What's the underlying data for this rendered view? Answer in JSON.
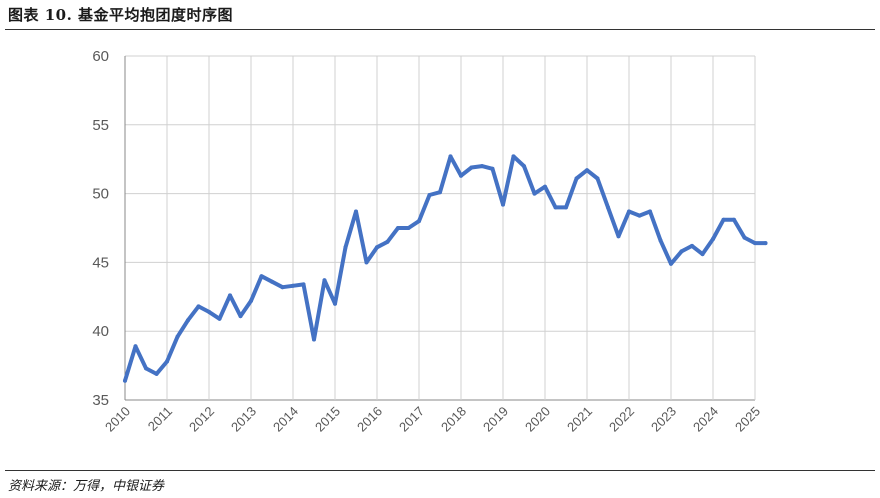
{
  "header": {
    "title": "图表 10. 基金平均抱团度时序图"
  },
  "footer": {
    "source": "资料来源：万得，中银证券"
  },
  "colors": {
    "line": "#4472C4",
    "grid": "#d0d0d0"
  },
  "chart_data": {
    "type": "line",
    "title": "",
    "xlabel": "",
    "ylabel": "",
    "ylim": [
      35,
      60
    ],
    "yticks": [
      35,
      40,
      45,
      50,
      55,
      60
    ],
    "xlim": [
      2010,
      2025
    ],
    "xticks": [
      "2010",
      "2011",
      "2012",
      "2013",
      "2014",
      "2015",
      "2016",
      "2017",
      "2018",
      "2019",
      "2020",
      "2021",
      "2022",
      "2023",
      "2024",
      "2025"
    ],
    "grid": true,
    "series": [
      {
        "x": [
          2010.0,
          2010.25,
          2010.5,
          2010.75,
          2011.0,
          2011.25,
          2011.5,
          2011.75,
          2012.0,
          2012.25,
          2012.5,
          2012.75,
          2013.0,
          2013.25,
          2013.5,
          2013.75,
          2014.0,
          2014.25,
          2014.5,
          2014.75,
          2015.0,
          2015.25,
          2015.5,
          2015.75,
          2016.0,
          2016.25,
          2016.5,
          2016.75,
          2017.0,
          2017.25,
          2017.5,
          2017.75,
          2018.0,
          2018.25,
          2018.5,
          2018.75,
          2019.0,
          2019.25,
          2019.5,
          2019.75,
          2020.0,
          2020.25,
          2020.5,
          2020.75,
          2021.0,
          2021.25,
          2021.5,
          2021.75,
          2022.0,
          2022.25,
          2022.5,
          2022.75,
          2023.0,
          2023.25,
          2023.5,
          2023.75,
          2024.0,
          2024.25,
          2024.5,
          2024.75,
          2025.0,
          2025.25
        ],
        "values": [
          36.4,
          38.9,
          37.3,
          36.9,
          37.8,
          39.6,
          40.8,
          41.8,
          41.4,
          40.9,
          42.6,
          41.1,
          42.2,
          44.0,
          43.6,
          43.2,
          43.3,
          43.4,
          39.4,
          43.7,
          42.0,
          46.1,
          48.7,
          45.0,
          46.1,
          46.5,
          47.5,
          47.5,
          48.0,
          49.9,
          50.1,
          52.7,
          51.3,
          51.9,
          52.0,
          51.8,
          49.2,
          52.7,
          52.0,
          50.0,
          50.5,
          49.0,
          49.0,
          51.1,
          51.7,
          51.1,
          49.0,
          46.9,
          48.7,
          48.4,
          48.7,
          46.6,
          44.9,
          45.8,
          46.2,
          45.6,
          46.7,
          48.1,
          48.1,
          46.8,
          46.4,
          46.4
        ]
      }
    ]
  }
}
